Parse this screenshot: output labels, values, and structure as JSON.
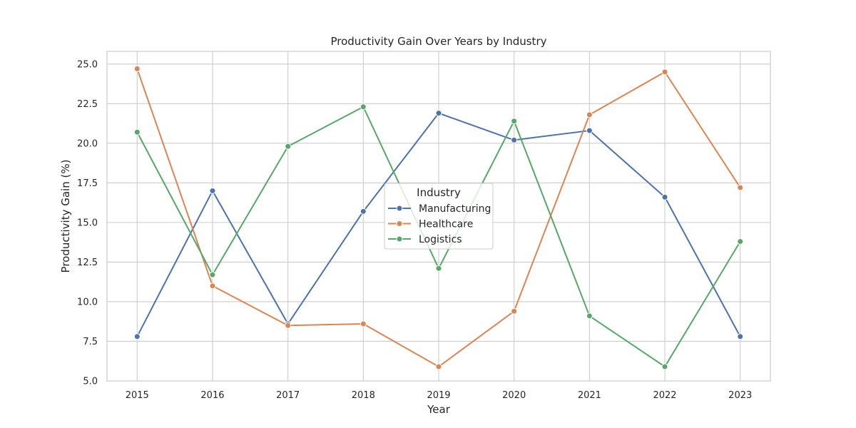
{
  "chart_data": {
    "type": "line",
    "title": "Productivity Gain Over Years by Industry",
    "xlabel": "Year",
    "ylabel": "Productivity Gain (%)",
    "x": [
      2015,
      2016,
      2017,
      2018,
      2019,
      2020,
      2021,
      2022,
      2023
    ],
    "xtick_labels": [
      "2015",
      "2016",
      "2017",
      "2018",
      "2019",
      "2020",
      "2021",
      "2022",
      "2023"
    ],
    "yticks": [
      5.0,
      7.5,
      10.0,
      12.5,
      15.0,
      17.5,
      20.0,
      22.5,
      25.0
    ],
    "ytick_labels": [
      "5.0",
      "7.5",
      "10.0",
      "12.5",
      "15.0",
      "17.5",
      "20.0",
      "22.5",
      "25.0"
    ],
    "ylim": [
      5.0,
      25.8
    ],
    "grid": true,
    "legend": {
      "title": "Industry",
      "placement": "center"
    },
    "series": [
      {
        "name": "Manufacturing",
        "color": "#4c72b0",
        "values": [
          7.8,
          17.0,
          8.6,
          15.7,
          21.9,
          20.2,
          20.8,
          16.6,
          7.8
        ]
      },
      {
        "name": "Healthcare",
        "color": "#dd8452",
        "values": [
          24.7,
          11.0,
          8.5,
          8.6,
          5.9,
          9.4,
          21.8,
          24.5,
          17.2
        ]
      },
      {
        "name": "Logistics",
        "color": "#55a868",
        "values": [
          20.7,
          11.7,
          19.8,
          22.3,
          12.1,
          21.4,
          9.1,
          5.9,
          13.8
        ]
      }
    ]
  }
}
